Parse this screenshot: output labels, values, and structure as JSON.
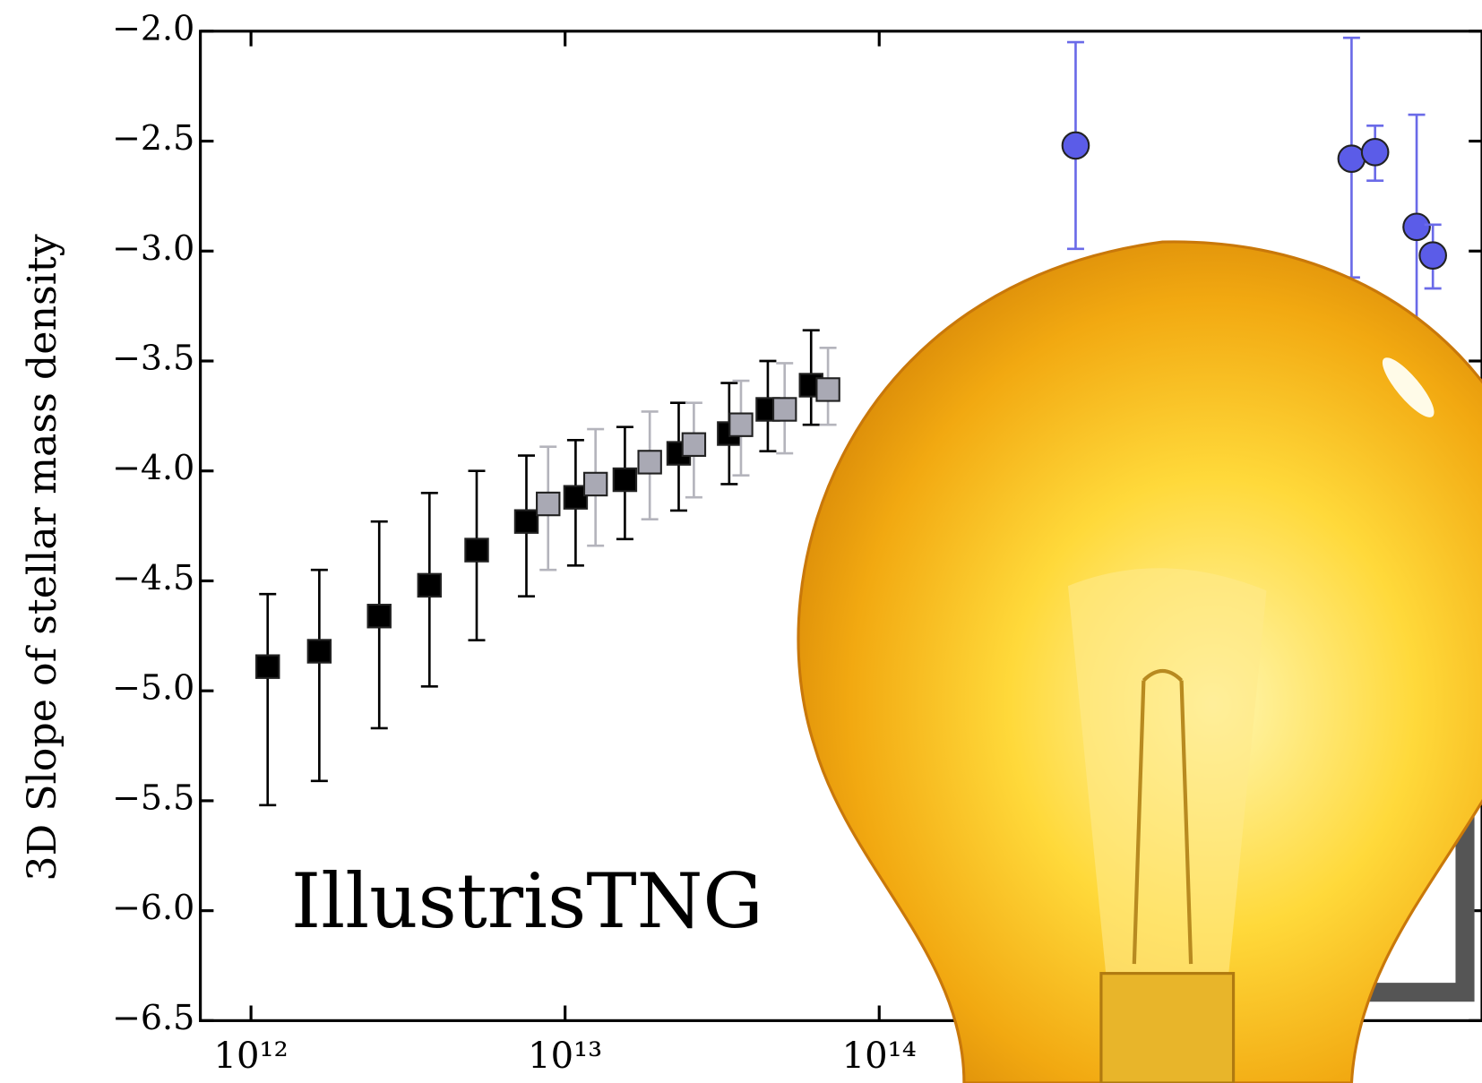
{
  "chart_data": {
    "type": "scatter",
    "y_label": "3D Slope of stellar mass density",
    "annotation": "IllustrisTNG",
    "log_x": true,
    "xlim": [
      690000000000.0,
      8300000000000000.0
    ],
    "ylim": [
      -6.5,
      -2.0
    ],
    "xticks": [
      {
        "value": 1000000000000.0,
        "label": "10¹²"
      },
      {
        "value": 10000000000000.0,
        "label": "10¹³"
      },
      {
        "value": 100000000000000.0,
        "label": "10¹⁴"
      }
    ],
    "yticks": [
      {
        "value": -2.0,
        "label": "−2.0"
      },
      {
        "value": -2.5,
        "label": "−2.5"
      },
      {
        "value": -3.0,
        "label": "−3.0"
      },
      {
        "value": -3.5,
        "label": "−3.5"
      },
      {
        "value": -4.0,
        "label": "−4.0"
      },
      {
        "value": -4.5,
        "label": "−4.5"
      },
      {
        "value": -5.0,
        "label": "−5.0"
      },
      {
        "value": -5.5,
        "label": "−5.5"
      },
      {
        "value": -6.0,
        "label": "−6.0"
      },
      {
        "value": -6.5,
        "label": "−6.5"
      }
    ],
    "series": [
      {
        "marker": "square",
        "color": "#000000",
        "error_color": "#000000",
        "x": [
          1130000000000.0,
          1650000000000.0,
          2560000000000.0,
          3700000000000.0,
          5230000000000.0,
          7530000000000.0,
          10800000000000.0,
          15500000000000.0,
          23000000000000.0,
          33300000000000.0,
          44200000000000.0,
          60700000000000.0
        ],
        "values": [
          -4.89,
          -4.82,
          -4.66,
          -4.52,
          -4.36,
          -4.23,
          -4.12,
          -4.04,
          -3.92,
          -3.83,
          -3.72,
          -3.61
        ],
        "err_low": [
          0.63,
          0.59,
          0.51,
          0.46,
          0.41,
          0.34,
          0.31,
          0.27,
          0.26,
          0.23,
          0.19,
          0.18
        ],
        "err_high": [
          0.33,
          0.37,
          0.43,
          0.42,
          0.36,
          0.3,
          0.26,
          0.24,
          0.23,
          0.23,
          0.22,
          0.25
        ]
      },
      {
        "marker": "square",
        "color": "#a9a9b4",
        "error_color": "#b4b4bc",
        "x": [
          8830000000000.0,
          12500000000000.0,
          18600000000000.0,
          25700000000000.0,
          36300000000000.0,
          50000000000000.0,
          68700000000000.0
        ],
        "values": [
          -4.15,
          -4.06,
          -3.96,
          -3.88,
          -3.79,
          -3.72,
          -3.63
        ],
        "err_low": [
          0.3,
          0.28,
          0.26,
          0.24,
          0.23,
          0.2,
          0.16
        ],
        "err_high": [
          0.26,
          0.25,
          0.23,
          0.19,
          0.2,
          0.21,
          0.19
        ]
      },
      {
        "marker": "circle",
        "color": "#5b5ce8",
        "error_color": "#6a6ae8",
        "x": [
          422000000000000.0,
          3190000000000000.0,
          3790000000000000.0,
          5140000000000000.0,
          5790000000000000.0
        ],
        "values": [
          -2.52,
          -2.58,
          -2.55,
          -2.89,
          -3.02
        ],
        "err_low": [
          0.47,
          0.54,
          0.13,
          0.5,
          0.15
        ],
        "err_high": [
          0.47,
          0.55,
          0.12,
          0.51,
          0.14
        ]
      }
    ]
  }
}
